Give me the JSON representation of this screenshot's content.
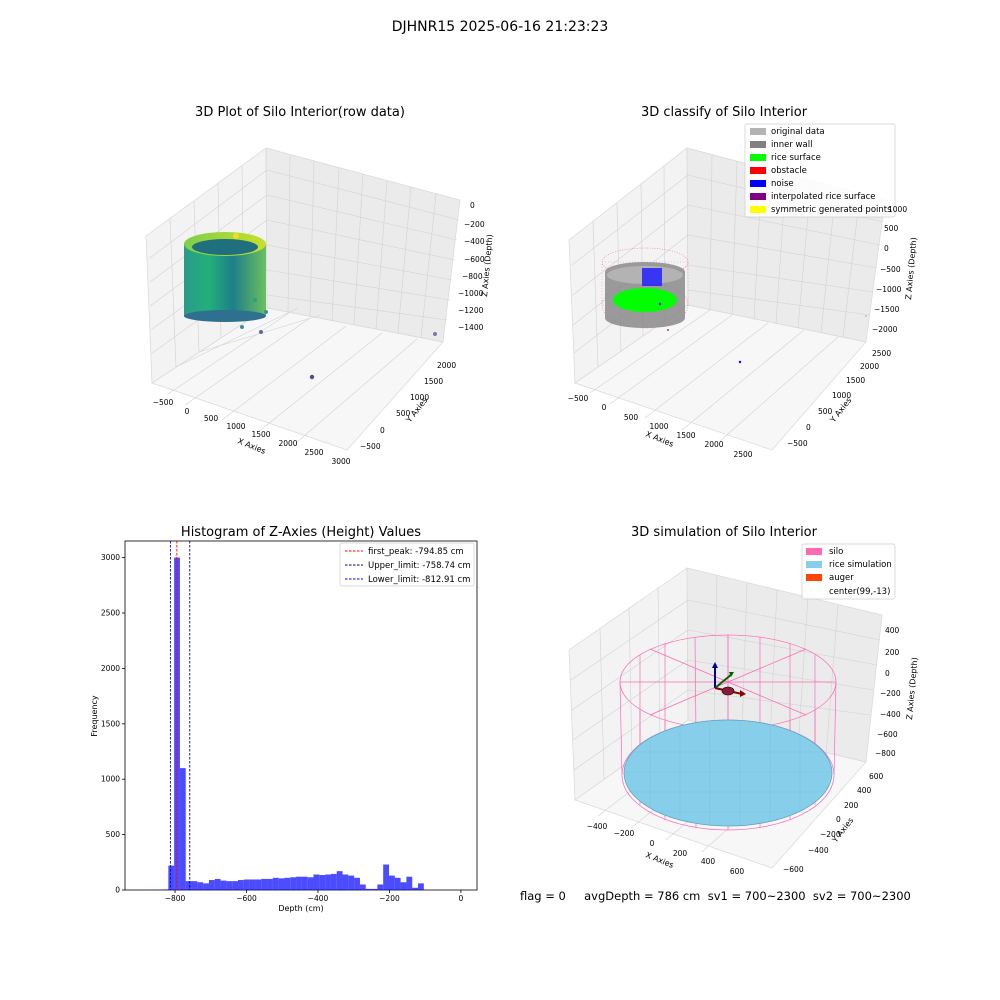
{
  "figure": {
    "suptitle": "DJHNR15 2025-06-16 21:23:23",
    "footer": "flag = 0     avgDepth = 786 cm  sv1 = 700~2300  sv2 = 700~2300"
  },
  "colors": {
    "original_data": "#b3b3b3",
    "inner_wall": "#808080",
    "rice_surface": "#00ff00",
    "obstacle": "#ff0000",
    "noise": "#0000ff",
    "interpolated_rice_surface": "#800080",
    "symmetric_generated_points": "#ffff00",
    "silo": "#ff69b4",
    "rice_simulation": "#87ceeb",
    "auger": "#ff4500",
    "hist_bar": "#0000ff",
    "first_peak": "#ff0000",
    "upper_limit": "#000080",
    "lower_limit": "#0000ff"
  },
  "panels": {
    "raw": {
      "title": "3D Plot of Silo Interior(row data)",
      "xlabel": "X Axies",
      "ylabel": "Y Axies",
      "zlabel": "Z Axies (Depth)",
      "xticks": [
        "−500",
        "0",
        "500",
        "1000",
        "1500",
        "2000",
        "2500",
        "3000"
      ],
      "yticks": [
        "−500",
        "0",
        "500",
        "1000",
        "1500",
        "2000"
      ],
      "zticks": [
        "0",
        "−200",
        "−400",
        "−600",
        "−800",
        "−1000",
        "−1200",
        "−1400"
      ]
    },
    "classify": {
      "title": "3D classify of Silo Interior",
      "xlabel": "X Axies",
      "ylabel": "Y Axies",
      "zlabel": "Z Axies (Depth)",
      "xticks": [
        "−500",
        "0",
        "500",
        "1000",
        "1500",
        "2000",
        "2500"
      ],
      "yticks": [
        "−500",
        "0",
        "500",
        "1000",
        "1500",
        "2000",
        "2500"
      ],
      "zticks": [
        "1000",
        "500",
        "0",
        "−500",
        "−1000",
        "−1500",
        "−2000"
      ],
      "legend": [
        {
          "label": "original data",
          "color": "#b3b3b3"
        },
        {
          "label": "inner wall",
          "color": "#808080"
        },
        {
          "label": "rice surface",
          "color": "#00ff00"
        },
        {
          "label": "obstacle",
          "color": "#ff0000"
        },
        {
          "label": "noise",
          "color": "#0000ff"
        },
        {
          "label": "interpolated rice surface",
          "color": "#800080"
        },
        {
          "label": "symmetric generated points",
          "color": "#ffff00"
        }
      ]
    },
    "simulation": {
      "title": "3D simulation of Silo Interior",
      "xlabel": "X Axies",
      "ylabel": "Y Axies",
      "zlabel": "Z Axies (Depth)",
      "xticks": [
        "−400",
        "−200",
        "0",
        "200",
        "400",
        "600"
      ],
      "yticks": [
        "−600",
        "−400",
        "−200",
        "0",
        "200",
        "400",
        "600"
      ],
      "zticks": [
        "400",
        "200",
        "0",
        "−200",
        "−400",
        "−600",
        "−800"
      ],
      "legend": [
        {
          "label": "silo",
          "color": "#ff69b4"
        },
        {
          "label": "rice simulation",
          "color": "#87ceeb"
        },
        {
          "label": "auger",
          "color": "#ff4500"
        },
        {
          "label": "center(99,-13)",
          "color": ""
        }
      ]
    }
  },
  "chart_data": {
    "type": "bar",
    "title": "Histogram of Z-Axies (Height) Values",
    "xlabel": "Depth (cm)",
    "ylabel": "Frequency",
    "xlim": [
      -940,
      45
    ],
    "ylim": [
      0,
      3150
    ],
    "xticks": [
      -800,
      -600,
      -400,
      -200,
      0
    ],
    "xtick_labels": [
      "−800",
      "−600",
      "−400",
      "−200",
      "0"
    ],
    "yticks": [
      0,
      500,
      1000,
      1500,
      2000,
      2500,
      3000
    ],
    "yticks_labels": [
      "0",
      "500",
      "1000",
      "1500",
      "2000",
      "2500",
      "3000"
    ],
    "bin_start": -900,
    "bin_width": 16.25,
    "values": [
      1,
      1,
      2,
      3,
      5,
      220,
      3000,
      1100,
      80,
      80,
      70,
      60,
      90,
      100,
      85,
      80,
      80,
      90,
      95,
      95,
      95,
      100,
      100,
      110,
      105,
      110,
      115,
      120,
      120,
      115,
      140,
      135,
      140,
      145,
      170,
      140,
      130,
      110,
      50,
      10,
      10,
      50,
      230,
      130,
      110,
      70,
      120,
      20,
      60
    ],
    "vlines": [
      {
        "label": "first_peak: -794.85 cm",
        "x": -794.85,
        "color": "#ff0000"
      },
      {
        "label": "Upper_limit: -758.74 cm",
        "x": -758.74,
        "color": "#000080"
      },
      {
        "label": "Lower_limit: -812.91 cm",
        "x": -812.91,
        "color": "#0000ff"
      }
    ],
    "legend_position": "top-right"
  }
}
